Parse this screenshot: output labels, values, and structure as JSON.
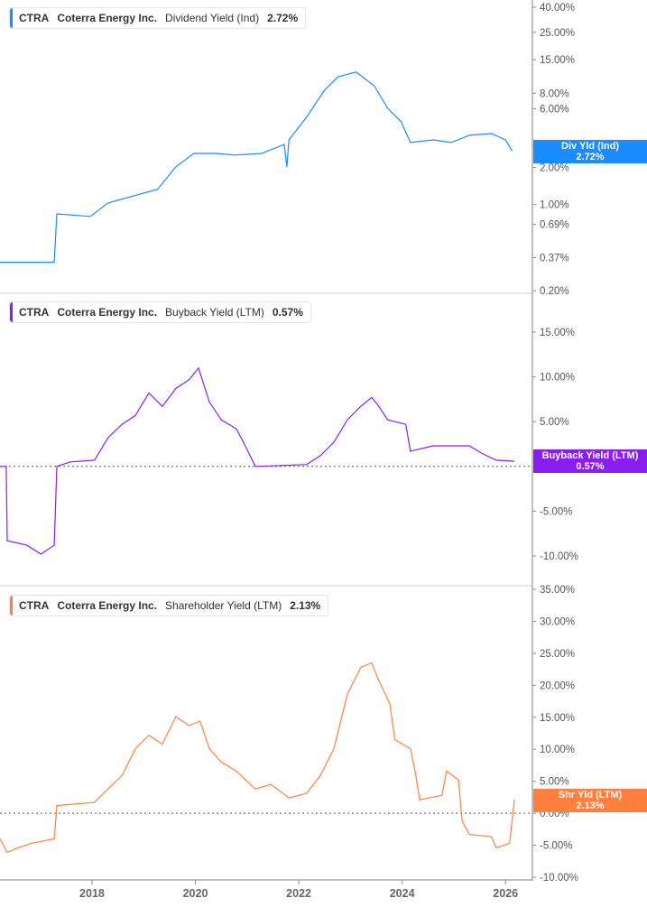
{
  "chart_data": [
    {
      "type": "line",
      "legend": {
        "ticker": "CTRA",
        "company": "Coterra Energy Inc.",
        "metric": "Dividend Yield (Ind)",
        "value": "2.72%"
      },
      "tag": {
        "label": "Div Yld (Ind)",
        "value": "2.72%"
      },
      "color": "#1a8cff",
      "y_scale": "log",
      "ylim": [
        0.2,
        40
      ],
      "y_ticks": [
        "40.00%",
        "25.00%",
        "15.00%",
        "8.00%",
        "6.00%",
        "3.00%",
        "2.00%",
        "1.00%",
        "0.69%",
        "0.37%",
        "0.20%"
      ],
      "y_tick_values": [
        40,
        25,
        15,
        8,
        6,
        3,
        2,
        1,
        0.69,
        0.37,
        0.2
      ],
      "x": [
        2016.22,
        2017.27,
        2017.32,
        2017.97,
        2018.31,
        2019.27,
        2019.62,
        2019.97,
        2020.41,
        2020.76,
        2021.28,
        2021.72,
        2021.77,
        2021.81,
        2022.15,
        2022.5,
        2022.76,
        2023.11,
        2023.46,
        2023.72,
        2023.98,
        2024.16,
        2024.6,
        2024.95,
        2025.3,
        2025.73,
        2026.0,
        2026.13
      ],
      "y": [
        0.34,
        0.34,
        0.84,
        0.8,
        1.03,
        1.33,
        2.02,
        2.6,
        2.6,
        2.52,
        2.6,
        3.08,
        2.02,
        3.35,
        5.11,
        8.48,
        10.9,
        11.9,
        9.2,
        6.05,
        4.7,
        3.19,
        3.35,
        3.19,
        3.65,
        3.77,
        3.35,
        2.72
      ]
    },
    {
      "type": "line",
      "legend": {
        "ticker": "CTRA",
        "company": "Coterra Energy Inc.",
        "metric": "Buyback Yield (LTM)",
        "value": "0.57%"
      },
      "tag": {
        "label": "Buyback Yield (LTM)",
        "value": "0.57%"
      },
      "color": "#8a1ef0",
      "ylim": [
        -12,
        17
      ],
      "y_ticks": [
        "15.00%",
        "10.00%",
        "5.00%",
        "0.00%",
        "-5.00%",
        "-10.00%"
      ],
      "y_tick_values": [
        15,
        10,
        5,
        0,
        -5,
        -10
      ],
      "zero_line": true,
      "x": [
        2016.22,
        2016.34,
        2016.36,
        2016.74,
        2017.01,
        2017.27,
        2017.32,
        2017.58,
        2018.05,
        2018.31,
        2018.58,
        2018.84,
        2019.1,
        2019.36,
        2019.62,
        2019.88,
        2020.06,
        2020.27,
        2020.5,
        2020.79,
        2020.93,
        2021.16,
        2022.15,
        2022.42,
        2022.68,
        2022.94,
        2023.2,
        2023.41,
        2023.55,
        2023.72,
        2024.07,
        2024.16,
        2024.6,
        2025.3,
        2025.56,
        2025.82,
        2026.17
      ],
      "y": [
        0,
        0,
        -8.3,
        -8.8,
        -9.8,
        -8.8,
        0,
        0.5,
        0.7,
        3.2,
        4.7,
        5.7,
        8.2,
        6.7,
        8.7,
        9.7,
        11,
        7.2,
        5.2,
        4.2,
        2.7,
        0,
        0.2,
        1.2,
        2.7,
        5.2,
        6.7,
        7.7,
        6.7,
        5.2,
        4.7,
        1.7,
        2.3,
        2.3,
        1.4,
        0.7,
        0.57
      ]
    },
    {
      "type": "line",
      "legend": {
        "ticker": "CTRA",
        "company": "Coterra Energy Inc.",
        "metric": "Shareholder Yield (LTM)",
        "value": "2.13%"
      },
      "tag": {
        "label": "Shr Yld (LTM)",
        "value": "2.13%"
      },
      "color": "#ff7f3f",
      "ylim": [
        -10,
        35
      ],
      "y_ticks": [
        "35.00%",
        "30.00%",
        "25.00%",
        "20.00%",
        "15.00%",
        "10.00%",
        "5.00%",
        "0.00%",
        "-5.00%",
        "-10.00%"
      ],
      "y_tick_values": [
        35,
        30,
        25,
        20,
        15,
        10,
        5,
        0,
        -5,
        -10
      ],
      "zero_line": true,
      "x": [
        2016.22,
        2016.36,
        2016.57,
        2016.83,
        2017.27,
        2017.32,
        2018.05,
        2018.31,
        2018.58,
        2018.84,
        2019.1,
        2019.36,
        2019.62,
        2019.88,
        2020.09,
        2020.27,
        2020.5,
        2020.79,
        2021.16,
        2021.46,
        2021.81,
        2022.15,
        2022.42,
        2022.68,
        2022.94,
        2023.2,
        2023.41,
        2023.55,
        2023.76,
        2023.86,
        2024.16,
        2024.25,
        2024.34,
        2024.77,
        2024.86,
        2025.09,
        2025.16,
        2025.3,
        2025.73,
        2025.82,
        2026.08,
        2026.17
      ],
      "y": [
        -4,
        -6.1,
        -5.4,
        -4.7,
        -4,
        1.2,
        1.7,
        3.8,
        5.9,
        10.1,
        12.2,
        10.8,
        15.1,
        13.7,
        14.4,
        10.1,
        8,
        6.6,
        3.8,
        4.5,
        2.4,
        3.1,
        5.9,
        10.1,
        18.6,
        22.8,
        23.5,
        20.7,
        17.2,
        11.5,
        10.1,
        6.6,
        2.1,
        2.8,
        6.6,
        5.2,
        -1.2,
        -3.3,
        -3.7,
        -5.4,
        -4.7,
        2.13
      ]
    }
  ],
  "x_axis": {
    "ticks": [
      "2018",
      "2020",
      "2022",
      "2024",
      "2026"
    ],
    "tick_values": [
      2018,
      2020,
      2022,
      2024,
      2026
    ],
    "xlim": [
      2016.22,
      2026.52
    ]
  }
}
